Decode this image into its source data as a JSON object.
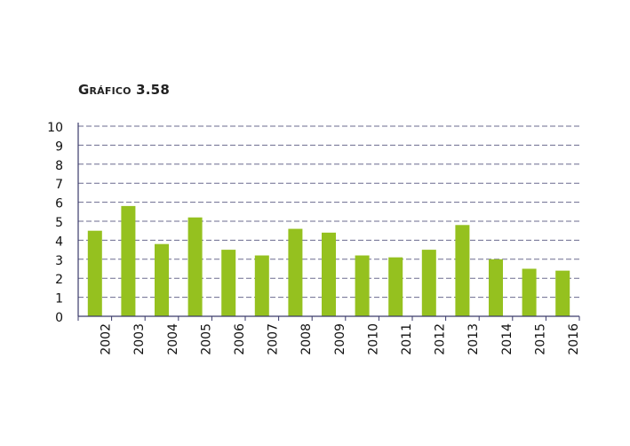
{
  "chart_data": {
    "type": "bar",
    "title": "Gráfico 3.58",
    "xlabel": "",
    "ylabel": "",
    "categories": [
      "2002",
      "2003",
      "2004",
      "2005",
      "2006",
      "2007",
      "2008",
      "2009",
      "2010",
      "2011",
      "2012",
      "2013",
      "2014",
      "2015",
      "2016"
    ],
    "values": [
      4.5,
      5.8,
      3.8,
      5.2,
      3.5,
      3.2,
      4.6,
      4.4,
      3.2,
      3.1,
      3.5,
      4.8,
      3.0,
      2.5,
      2.4
    ],
    "ylim": [
      0,
      10
    ],
    "yticks": [
      0,
      1,
      2,
      3,
      4,
      5,
      6,
      7,
      8,
      9,
      10
    ],
    "grid": true,
    "legend": "none",
    "colors": {
      "bar": "#95c11f",
      "grid": "#6b6b8f",
      "axis": "#3a3a6a",
      "text": "#111111"
    }
  }
}
